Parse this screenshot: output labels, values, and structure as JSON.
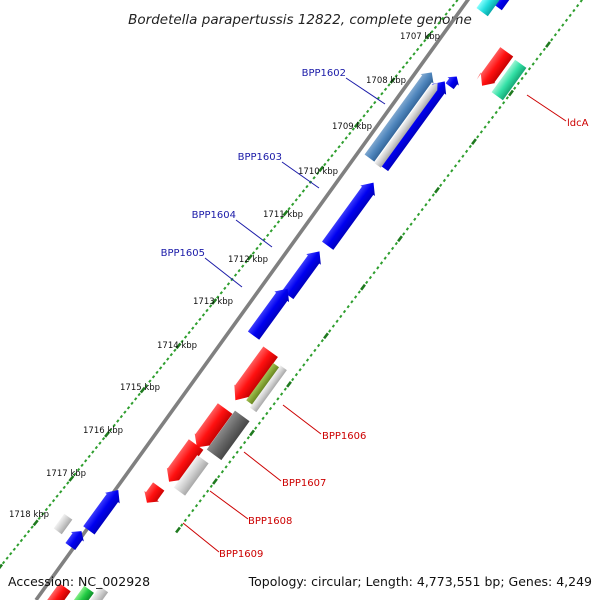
{
  "title": "Bordetella parapertussis 12822, complete genome",
  "footer": {
    "accession": "Accession: NC_002928",
    "summary": "Topology: circular; Length: 4,773,551 bp; Genes: 4,249"
  },
  "ruler": {
    "labels": [
      "1707 kbp",
      "1708 kbp",
      "1709 kbp",
      "1710 kbp",
      "1711 kbp",
      "1712 kbp",
      "1713 kbp",
      "1714 kbp",
      "1715 kbp",
      "1716 kbp",
      "1717 kbp",
      "1718 kbp"
    ]
  },
  "gene_labels": [
    {
      "text": "BPP1602",
      "strand": "forward"
    },
    {
      "text": "BPP1603",
      "strand": "forward"
    },
    {
      "text": "BPP1604",
      "strand": "forward"
    },
    {
      "text": "BPP1605",
      "strand": "forward"
    },
    {
      "text": "ldcA",
      "strand": "reverse"
    },
    {
      "text": "BPP1606",
      "strand": "reverse"
    },
    {
      "text": "BPP1607",
      "strand": "reverse"
    },
    {
      "text": "BPP1608",
      "strand": "reverse"
    },
    {
      "text": "BPP1609",
      "strand": "reverse"
    }
  ],
  "colors": {
    "forward_gene": "#0000ee",
    "reverse_gene": "#ff1a1a",
    "forward_label": "#1a1aa8",
    "reverse_label": "#cc0000",
    "backbone": "#808080",
    "tick_major": "#1f7a1f",
    "tick_minor": "#2e9e2e"
  }
}
